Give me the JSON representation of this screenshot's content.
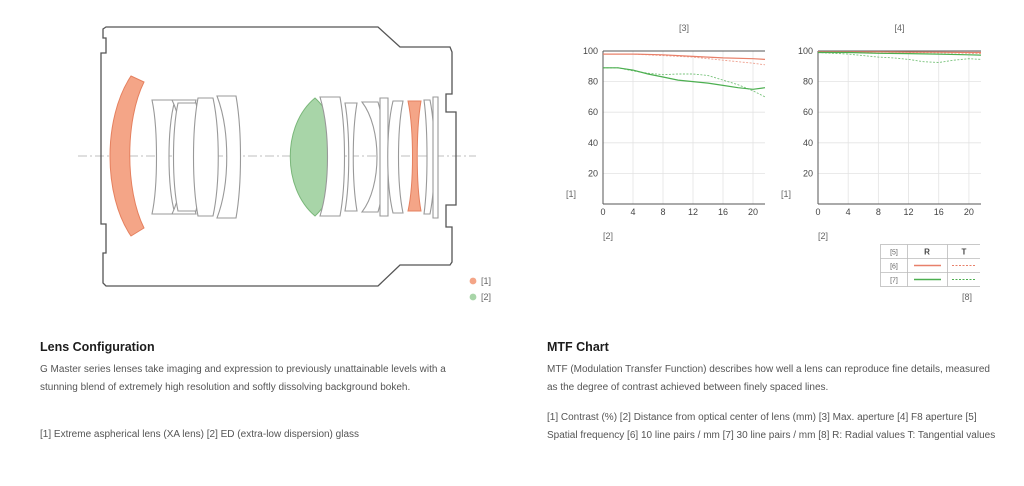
{
  "lens_diagram": {
    "legend": [
      {
        "label": "[1]",
        "color": "#f4a587"
      },
      {
        "label": "[2]",
        "color": "#a8d5a8"
      }
    ]
  },
  "lens_section": {
    "title": "Lens Configuration",
    "body": "G Master series lenses take imaging and expression to previously unattainable levels with a stunning blend of extremely high resolution and softly dissolving background bokeh.",
    "note": "[1] Extreme aspherical lens (XA lens) [2] ED (extra-low dispersion) glass"
  },
  "mtf_section": {
    "title": "MTF Chart",
    "body": "MTF (Modulation Transfer Function) describes how well a lens can reproduce fine details, measured as the degree of contrast achieved between finely spaced lines.",
    "note": "[1] Contrast (%) [2] Distance from optical center of lens (mm) [3] Max. aperture [4] F8 aperture [5] Spatial frequency [6] 10 line pairs / mm [7] 30 line pairs / mm [8] R: Radial values T: Tangential values"
  },
  "mtf_legend": {
    "header": [
      "[5]",
      "R",
      "T"
    ],
    "rows": [
      "[6]",
      "[7]"
    ],
    "caption": "[8]",
    "red": "#e8806a",
    "green": "#4caf50"
  },
  "chart_data": [
    {
      "type": "line",
      "title": "[3]",
      "xlabel": "[2]",
      "ylabel": "[1]",
      "xlim": [
        0,
        21.6
      ],
      "ylim": [
        0,
        100
      ],
      "xticks": [
        0,
        4,
        8,
        12,
        16,
        20
      ],
      "yticks": [
        20,
        40,
        60,
        80,
        100
      ],
      "series": [
        {
          "color": "#e8806a",
          "dash": false,
          "x": [
            0,
            4,
            8,
            12,
            16,
            20,
            21.6
          ],
          "y": [
            98,
            98,
            97.5,
            96.5,
            95.5,
            95,
            94.5
          ]
        },
        {
          "color": "#e8806a",
          "dash": true,
          "x": [
            0,
            4,
            8,
            12,
            16,
            20,
            21.6
          ],
          "y": [
            98,
            98,
            97,
            96,
            94,
            92,
            91
          ]
        },
        {
          "color": "#4caf50",
          "dash": false,
          "x": [
            0,
            2,
            4,
            6,
            8,
            10,
            12,
            14,
            16,
            18,
            20,
            21.6
          ],
          "y": [
            89,
            89,
            87.5,
            85,
            83,
            81,
            80,
            79,
            77.5,
            76,
            75,
            76
          ]
        },
        {
          "color": "#4caf50",
          "dash": true,
          "x": [
            0,
            2,
            4,
            6,
            8,
            10,
            12,
            14,
            16,
            18,
            20,
            21.6
          ],
          "y": [
            89,
            89,
            87,
            85.5,
            84.5,
            85,
            85,
            84,
            81,
            78,
            74,
            70
          ]
        }
      ]
    },
    {
      "type": "line",
      "title": "[4]",
      "xlabel": "[2]",
      "ylabel": "[1]",
      "xlim": [
        0,
        21.6
      ],
      "ylim": [
        0,
        100
      ],
      "xticks": [
        0,
        4,
        8,
        12,
        16,
        20
      ],
      "yticks": [
        20,
        40,
        60,
        80,
        100
      ],
      "series": [
        {
          "color": "#e8806a",
          "dash": false,
          "x": [
            0,
            4,
            8,
            12,
            16,
            20,
            21.6
          ],
          "y": [
            99.5,
            99.5,
            99.5,
            99.3,
            99.2,
            99,
            99
          ]
        },
        {
          "color": "#e8806a",
          "dash": true,
          "x": [
            0,
            4,
            8,
            12,
            16,
            20,
            21.6
          ],
          "y": [
            99.5,
            99.5,
            99.3,
            99,
            98.8,
            98.5,
            98.3
          ]
        },
        {
          "color": "#4caf50",
          "dash": false,
          "x": [
            0,
            4,
            8,
            12,
            16,
            20,
            21.6
          ],
          "y": [
            99,
            99,
            98.5,
            98.3,
            98,
            97.5,
            97.3
          ]
        },
        {
          "color": "#4caf50",
          "dash": true,
          "x": [
            0,
            4,
            6,
            8,
            10,
            12,
            14,
            16,
            18,
            20,
            21.6
          ],
          "y": [
            99,
            98,
            97,
            96,
            95.5,
            94.5,
            93,
            92.5,
            94,
            95,
            94.5
          ]
        }
      ]
    }
  ]
}
